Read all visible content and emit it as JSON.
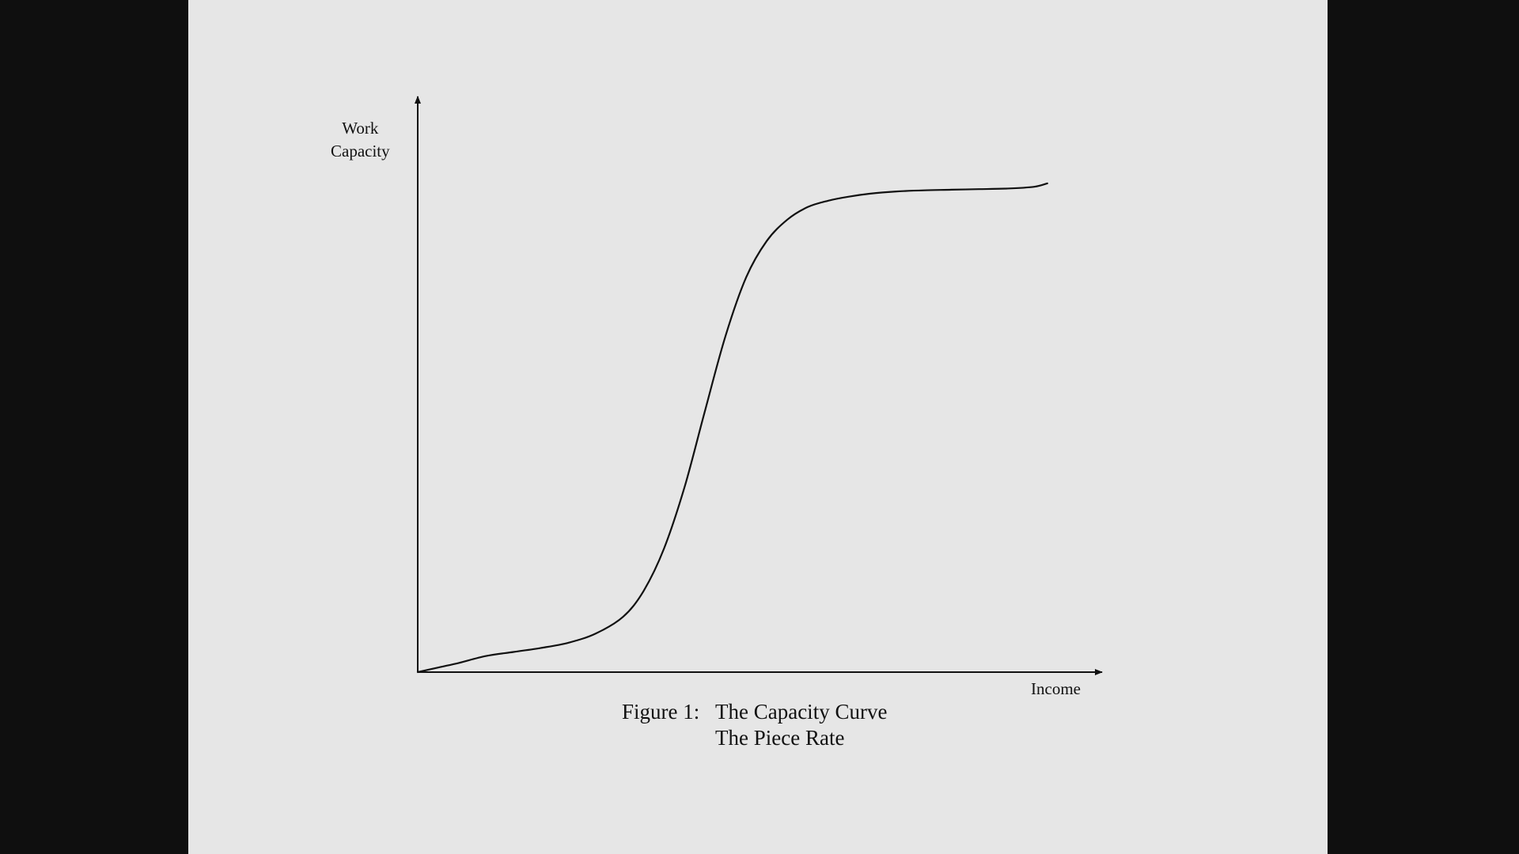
{
  "slide": {
    "background": "#e6e6e6",
    "frame_color": "#0f0f0f"
  },
  "chart_data": {
    "type": "line",
    "ylabel_lines": [
      "Work",
      "Capacity"
    ],
    "xlabel": "Income",
    "caption": {
      "prefix": "Figure 1:",
      "line1": "The Capacity Curve",
      "line2": "The Piece Rate"
    },
    "xlim": [
      0,
      100
    ],
    "ylim": [
      0,
      100
    ],
    "ticks": "none",
    "grid": false,
    "series": [
      {
        "color": "#111111",
        "x": [
          0,
          3,
          6,
          10,
          14,
          18,
          22,
          26,
          30,
          33,
          36,
          39,
          42,
          45,
          48,
          51,
          54,
          57,
          60,
          63,
          66,
          70,
          74,
          78,
          82,
          86,
          90,
          92
        ],
        "y": [
          0,
          0.8,
          1.6,
          2.8,
          3.5,
          4.2,
          5.1,
          6.7,
          9.6,
          14.1,
          21.5,
          32.2,
          45.5,
          58.5,
          68.6,
          74.9,
          78.6,
          80.8,
          81.9,
          82.6,
          83.1,
          83.5,
          83.7,
          83.8,
          83.9,
          84.0,
          84.3,
          84.9
        ]
      }
    ]
  }
}
